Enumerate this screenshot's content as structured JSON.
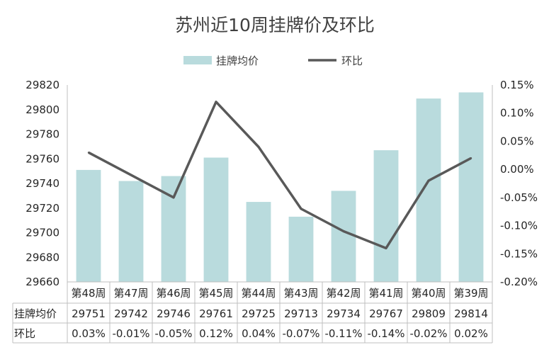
{
  "chart_data": {
    "type": "bar",
    "title": "苏州近10周挂牌价及环比",
    "categories": [
      "第48周",
      "第47周",
      "第46周",
      "第45周",
      "第44周",
      "第43周",
      "第42周",
      "第41周",
      "第40周",
      "第39周"
    ],
    "series": [
      {
        "name": "挂牌均价",
        "type": "bar",
        "axis": "left",
        "color": "#b9dbdd",
        "values": [
          29751,
          29742,
          29746,
          29761,
          29725,
          29713,
          29734,
          29767,
          29809,
          29814
        ]
      },
      {
        "name": "环比",
        "type": "line",
        "axis": "right",
        "color": "#595959",
        "values": [
          0.03,
          -0.01,
          -0.05,
          0.12,
          0.04,
          -0.07,
          -0.11,
          -0.14,
          -0.02,
          0.02
        ]
      }
    ],
    "y_left": {
      "min": 29660,
      "max": 29820,
      "step": 20
    },
    "y_right": {
      "min": -0.2,
      "max": 0.15,
      "step": 0.05,
      "unit": "%"
    },
    "legend_position": "top",
    "data_table": {
      "rows": [
        {
          "label": "挂牌均价",
          "cells": [
            "29751",
            "29742",
            "29746",
            "29761",
            "29725",
            "29713",
            "29734",
            "29767",
            "29809",
            "29814"
          ]
        },
        {
          "label": "环比",
          "cells": [
            "0.03%",
            "-0.01%",
            "-0.05%",
            "0.12%",
            "0.04%",
            "-0.07%",
            "-0.11%",
            "-0.14%",
            "-0.02%",
            "0.02%"
          ]
        }
      ]
    },
    "grid": false
  }
}
